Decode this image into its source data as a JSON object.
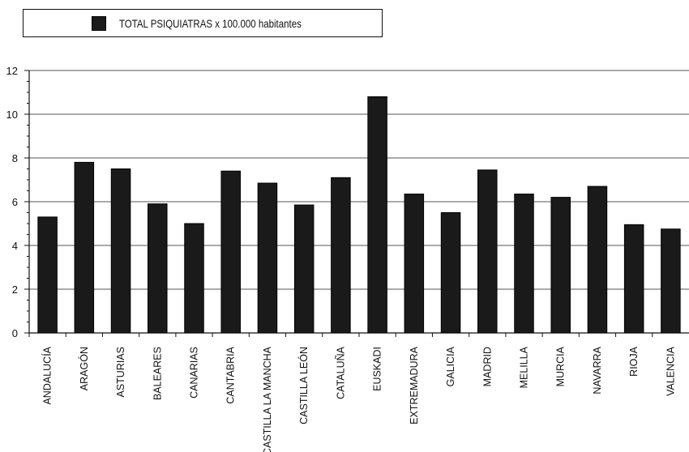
{
  "chart_data": {
    "type": "bar",
    "title": "",
    "xlabel": "",
    "ylabel": "",
    "legend_position": "top-left",
    "grid": true,
    "ylim": [
      0,
      12
    ],
    "yticks": [
      "0",
      "2",
      "4",
      "6",
      "8",
      "10",
      "12"
    ],
    "categories": [
      "ANDALUCÍA",
      "ARAGÓN",
      "ASTURIAS",
      "BALEARES",
      "CANARIAS",
      "CANTABRIA",
      "CASTILLA LA MANCHA",
      "CASTILLA LEÓN",
      "CATALUÑA",
      "EUSKADI",
      "EXTREMADURA",
      "GALICIA",
      "MADRID",
      "MELILLA",
      "MURCIA",
      "NAVARRA",
      "RIOJA",
      "VALENCIA"
    ],
    "series": [
      {
        "name": "TOTAL PSIQUIATRAS x 100.000 habitantes",
        "color": "#1a1a1a",
        "values": [
          5.3,
          7.8,
          7.5,
          5.9,
          5.0,
          7.4,
          6.85,
          5.85,
          7.1,
          10.8,
          6.35,
          5.5,
          7.45,
          6.35,
          6.2,
          6.7,
          4.95,
          4.75
        ]
      }
    ]
  }
}
